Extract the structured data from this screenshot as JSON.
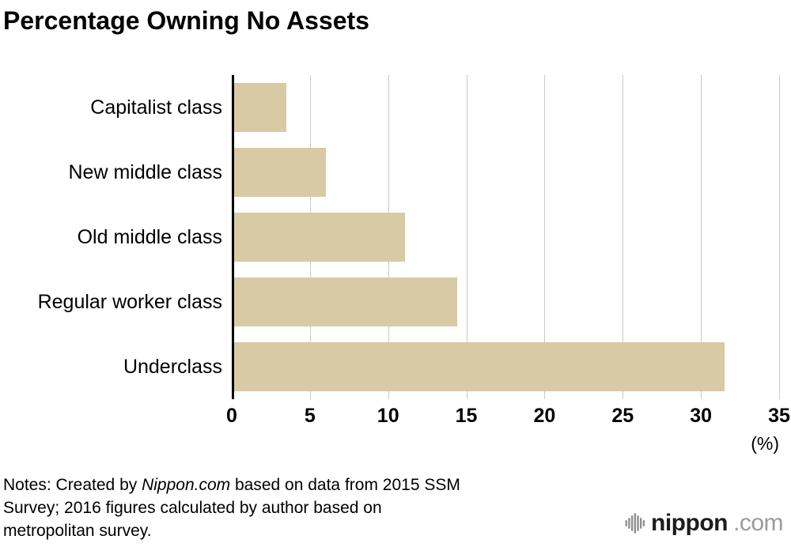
{
  "chart_data": {
    "type": "bar",
    "orientation": "horizontal",
    "title": "Percentage Owning No Assets",
    "categories": [
      "Capitalist class",
      "New middle class",
      "Old middle class",
      "Regular worker class",
      "Underclass"
    ],
    "values": [
      3.5,
      6.0,
      11.1,
      14.4,
      31.5
    ],
    "xlabel": "(%)",
    "xlim": [
      0,
      35
    ],
    "xticks": [
      0,
      5,
      10,
      15,
      20,
      25,
      30,
      35
    ],
    "grid": "vertical",
    "legend": "none",
    "bar_color": "#d7caa5",
    "gridline_color": "#c9c9c9",
    "axis_color": "#000000"
  },
  "notes": {
    "prefix": "Notes: Created by ",
    "source": "Nippon.com",
    "suffix": " based on data from 2015 SSM Survey; 2016 figures calculated by author based on metropolitan survey."
  },
  "logo": {
    "name": "nippon",
    "tld": ".com",
    "icon_color": "#8f8f8f"
  }
}
